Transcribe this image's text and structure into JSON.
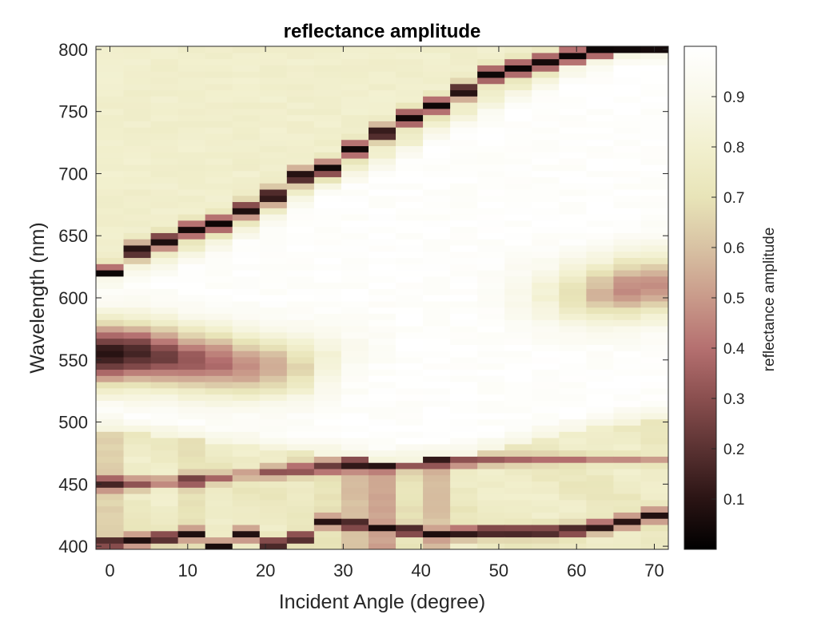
{
  "chart_data": {
    "type": "heatmap",
    "title": "reflectance amplitude",
    "xlabel": "Incident Angle (degree)",
    "ylabel": "Wavelength (nm)",
    "colorbar_label": "reflectance amplitude",
    "xlim": [
      -1.8,
      71.8
    ],
    "ylim": [
      397.5,
      802.5
    ],
    "x_ticks": [
      0,
      10,
      20,
      30,
      40,
      50,
      60,
      70
    ],
    "y_ticks": [
      400,
      450,
      500,
      550,
      600,
      650,
      700,
      750,
      800
    ],
    "colorbar_ticks": [
      0.1,
      0.2,
      0.3,
      0.4,
      0.5,
      0.6,
      0.7,
      0.8,
      0.9
    ],
    "clim": [
      0,
      1
    ],
    "grid": false,
    "x": [
      0,
      3.5,
      7,
      10.5,
      14,
      17.5,
      21,
      24.5,
      28,
      31.5,
      35,
      38.5,
      42,
      45.5,
      49,
      52.5,
      56,
      59.5,
      63,
      66.5,
      70
    ],
    "y_range": [
      400,
      800
    ],
    "y_step": 5,
    "colormap": [
      "#000000",
      "#2a1414",
      "#5a3232",
      "#8a4f4f",
      "#b57070",
      "#c99a8a",
      "#d8c2a3",
      "#e8e4b8",
      "#f2f0cf",
      "#f9f8ea",
      "#ffffff"
    ],
    "features": {
      "angle_branch": [
        620,
        638,
        646,
        655,
        660,
        671,
        682,
        698,
        704,
        720,
        733,
        745,
        755,
        767,
        780,
        785,
        790,
        795,
        800,
        800,
        800
      ],
      "upper_gap_edge": [
        620,
        628,
        632,
        640,
        648,
        658,
        670,
        685,
        695,
        705,
        715,
        725,
        738,
        748,
        758,
        768,
        778,
        788,
        795,
        800,
        800
      ],
      "dip_center": [
        555,
        555,
        553,
        550,
        548,
        545,
        545,
        545,
        550,
        555,
        565,
        575,
        585,
        595,
        600,
        603,
        603,
        603,
        605,
        608,
        610
      ],
      "dip_strength": [
        0.88,
        0.82,
        0.74,
        0.66,
        0.6,
        0.52,
        0.45,
        0.32,
        0.16,
        0.06,
        0.02,
        0,
        0,
        0,
        0.02,
        0.08,
        0.16,
        0.3,
        0.42,
        0.52,
        0.5
      ],
      "lower_gap_edge": [
        495,
        492,
        490,
        488,
        485,
        483,
        480,
        478,
        475,
        473,
        470,
        470,
        472,
        474,
        478,
        483,
        488,
        492,
        496,
        500,
        503
      ],
      "dark_band": [
        451,
        451,
        452,
        453,
        455,
        458,
        460,
        462,
        464,
        466,
        467,
        468,
        469,
        469,
        470,
        470,
        470,
        470,
        470,
        470,
        469
      ],
      "dark_band_value": [
        0.15,
        0.3,
        0.4,
        0.2,
        0.35,
        0.45,
        0.3,
        0.25,
        0.2,
        0.1,
        0.02,
        0.2,
        0.1,
        0.3,
        0.35,
        0.38,
        0.38,
        0.4,
        0.45,
        0.45,
        0.5
      ],
      "lower_branch": [
        403,
        405,
        407,
        410,
        400,
        410,
        402,
        407,
        420,
        418,
        415,
        413,
        410,
        411,
        412,
        412,
        412,
        413,
        416,
        420,
        425
      ]
    }
  }
}
